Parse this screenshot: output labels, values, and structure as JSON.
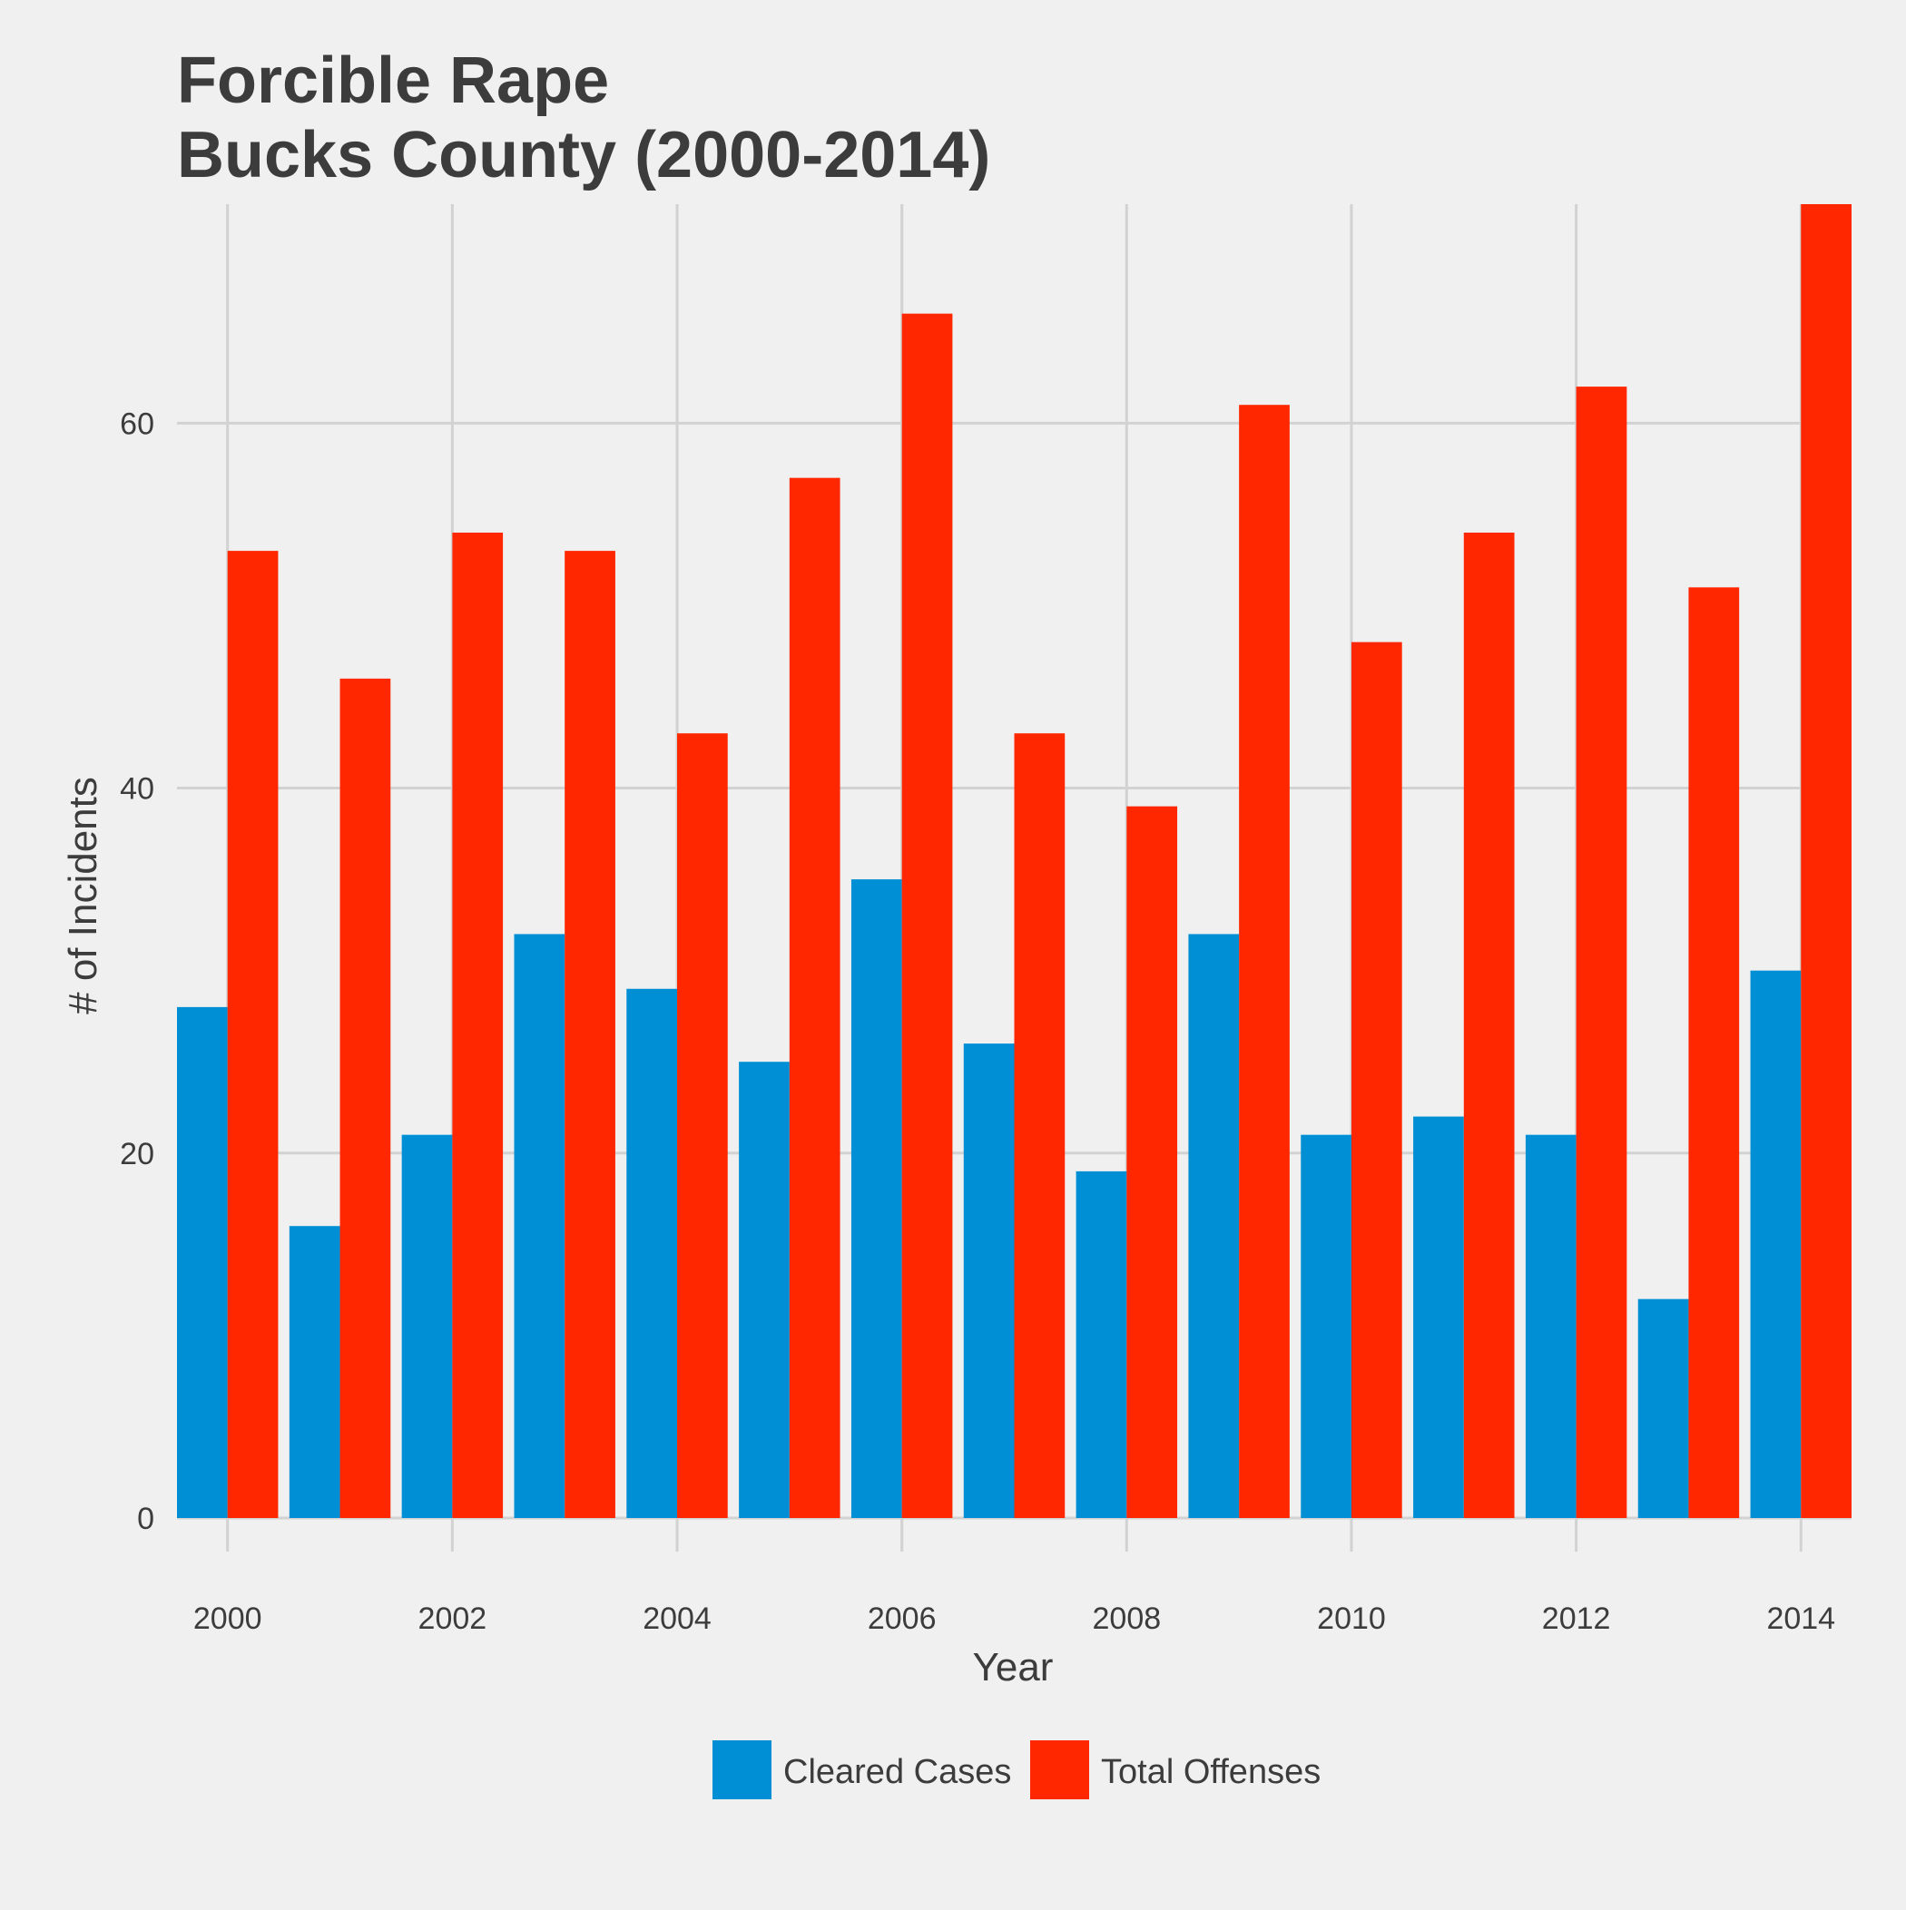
{
  "chart_data": {
    "type": "bar",
    "title": "Forcible Rape\nBucks County (2000-2014)",
    "title_lines": [
      "Forcible Rape",
      "Bucks County (2000-2014)"
    ],
    "xlabel": "Year",
    "ylabel": "# of Incidents",
    "x": [
      2000,
      2001,
      2002,
      2003,
      2004,
      2005,
      2006,
      2007,
      2008,
      2009,
      2010,
      2011,
      2012,
      2013,
      2014
    ],
    "x_ticks": [
      "2000",
      "2002",
      "2004",
      "2006",
      "2008",
      "2010",
      "2012",
      "2014"
    ],
    "y_ticks": [
      "0",
      "20",
      "40",
      "60"
    ],
    "ylim": [
      0,
      72
    ],
    "xlim": [
      1999.55,
      2014.45
    ],
    "grid": true,
    "legend_position": "bottom",
    "series": [
      {
        "name": "Cleared Cases",
        "color": "#008fd5",
        "values": [
          28,
          16,
          21,
          32,
          29,
          25,
          35,
          26,
          19,
          32,
          21,
          22,
          21,
          12,
          30
        ]
      },
      {
        "name": "Total Offenses",
        "color": "#ff2700",
        "values": [
          53,
          46,
          54,
          53,
          43,
          57,
          66,
          43,
          39,
          61,
          48,
          54,
          62,
          51,
          72
        ]
      }
    ]
  }
}
